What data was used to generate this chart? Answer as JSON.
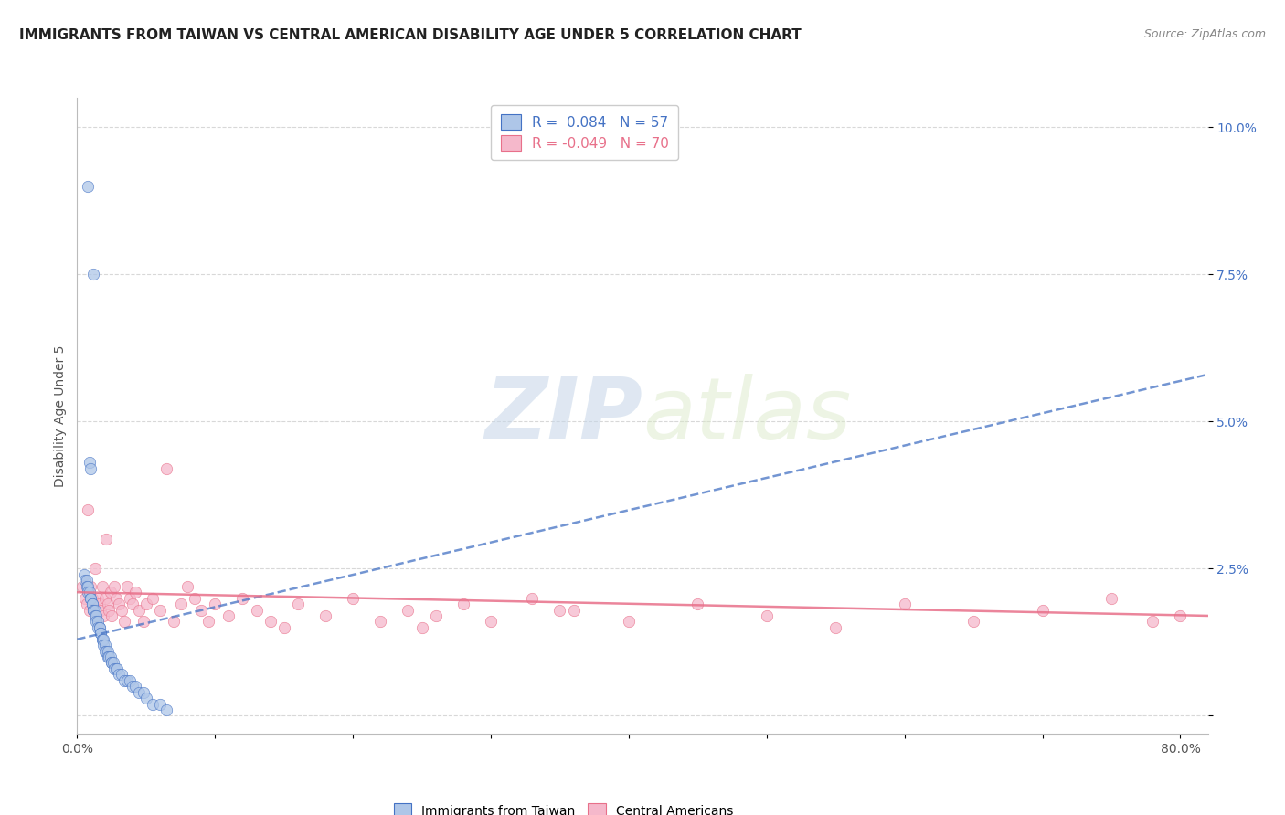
{
  "title": "IMMIGRANTS FROM TAIWAN VS CENTRAL AMERICAN DISABILITY AGE UNDER 5 CORRELATION CHART",
  "source": "Source: ZipAtlas.com",
  "ylabel": "Disability Age Under 5",
  "xlim": [
    0.0,
    0.82
  ],
  "ylim": [
    -0.003,
    0.105
  ],
  "yticks": [
    0.0,
    0.025,
    0.05,
    0.075,
    0.1
  ],
  "ytick_labels": [
    "",
    "2.5%",
    "5.0%",
    "7.5%",
    "10.0%"
  ],
  "xticks": [
    0.0,
    0.1,
    0.2,
    0.3,
    0.4,
    0.5,
    0.6,
    0.7,
    0.8
  ],
  "xtick_labels": [
    "0.0%",
    "",
    "",
    "",
    "",
    "",
    "",
    "",
    "80.0%"
  ],
  "taiwan_color": "#aec6e8",
  "central_color": "#f5b8cb",
  "taiwan_line_color": "#4472c4",
  "central_line_color": "#e8708a",
  "taiwan_R": 0.084,
  "taiwan_N": 57,
  "central_R": -0.049,
  "central_N": 70,
  "watermark_zip": "ZIP",
  "watermark_atlas": "atlas",
  "taiwan_trend_x": [
    0.0,
    0.82
  ],
  "taiwan_trend_y": [
    0.013,
    0.058
  ],
  "central_trend_x": [
    0.0,
    0.82
  ],
  "central_trend_y": [
    0.021,
    0.017
  ],
  "taiwan_scatter_x": [
    0.008,
    0.012,
    0.005,
    0.006,
    0.007,
    0.007,
    0.008,
    0.008,
    0.009,
    0.009,
    0.01,
    0.01,
    0.01,
    0.011,
    0.011,
    0.012,
    0.012,
    0.013,
    0.013,
    0.014,
    0.014,
    0.015,
    0.015,
    0.016,
    0.016,
    0.017,
    0.017,
    0.018,
    0.018,
    0.019,
    0.019,
    0.02,
    0.02,
    0.021,
    0.022,
    0.022,
    0.023,
    0.024,
    0.025,
    0.025,
    0.026,
    0.027,
    0.028,
    0.029,
    0.03,
    0.032,
    0.034,
    0.036,
    0.038,
    0.04,
    0.042,
    0.045,
    0.048,
    0.05,
    0.055,
    0.06,
    0.065
  ],
  "taiwan_scatter_y": [
    0.09,
    0.075,
    0.024,
    0.023,
    0.023,
    0.022,
    0.022,
    0.021,
    0.043,
    0.021,
    0.042,
    0.02,
    0.02,
    0.019,
    0.019,
    0.018,
    0.018,
    0.018,
    0.017,
    0.017,
    0.016,
    0.016,
    0.015,
    0.015,
    0.015,
    0.014,
    0.014,
    0.013,
    0.013,
    0.013,
    0.012,
    0.012,
    0.011,
    0.011,
    0.011,
    0.01,
    0.01,
    0.01,
    0.009,
    0.009,
    0.009,
    0.008,
    0.008,
    0.008,
    0.007,
    0.007,
    0.006,
    0.006,
    0.006,
    0.005,
    0.005,
    0.004,
    0.004,
    0.003,
    0.002,
    0.002,
    0.001
  ],
  "central_scatter_x": [
    0.004,
    0.006,
    0.007,
    0.008,
    0.009,
    0.01,
    0.011,
    0.012,
    0.013,
    0.014,
    0.015,
    0.016,
    0.017,
    0.018,
    0.019,
    0.02,
    0.021,
    0.022,
    0.023,
    0.024,
    0.025,
    0.027,
    0.028,
    0.03,
    0.032,
    0.034,
    0.036,
    0.038,
    0.04,
    0.042,
    0.045,
    0.048,
    0.05,
    0.055,
    0.06,
    0.065,
    0.07,
    0.075,
    0.08,
    0.085,
    0.09,
    0.095,
    0.1,
    0.11,
    0.12,
    0.13,
    0.14,
    0.15,
    0.16,
    0.18,
    0.2,
    0.22,
    0.24,
    0.26,
    0.28,
    0.3,
    0.33,
    0.36,
    0.4,
    0.45,
    0.5,
    0.55,
    0.6,
    0.65,
    0.7,
    0.75,
    0.78,
    0.8,
    0.25,
    0.35
  ],
  "central_scatter_y": [
    0.022,
    0.02,
    0.019,
    0.035,
    0.018,
    0.022,
    0.02,
    0.018,
    0.025,
    0.017,
    0.02,
    0.019,
    0.018,
    0.022,
    0.017,
    0.02,
    0.03,
    0.019,
    0.018,
    0.021,
    0.017,
    0.022,
    0.02,
    0.019,
    0.018,
    0.016,
    0.022,
    0.02,
    0.019,
    0.021,
    0.018,
    0.016,
    0.019,
    0.02,
    0.018,
    0.042,
    0.016,
    0.019,
    0.022,
    0.02,
    0.018,
    0.016,
    0.019,
    0.017,
    0.02,
    0.018,
    0.016,
    0.015,
    0.019,
    0.017,
    0.02,
    0.016,
    0.018,
    0.017,
    0.019,
    0.016,
    0.02,
    0.018,
    0.016,
    0.019,
    0.017,
    0.015,
    0.019,
    0.016,
    0.018,
    0.02,
    0.016,
    0.017,
    0.015,
    0.018
  ],
  "background_color": "#ffffff",
  "grid_color": "#d8d8d8",
  "title_fontsize": 11,
  "axis_label_fontsize": 10,
  "tick_fontsize": 10,
  "legend_fontsize": 11
}
